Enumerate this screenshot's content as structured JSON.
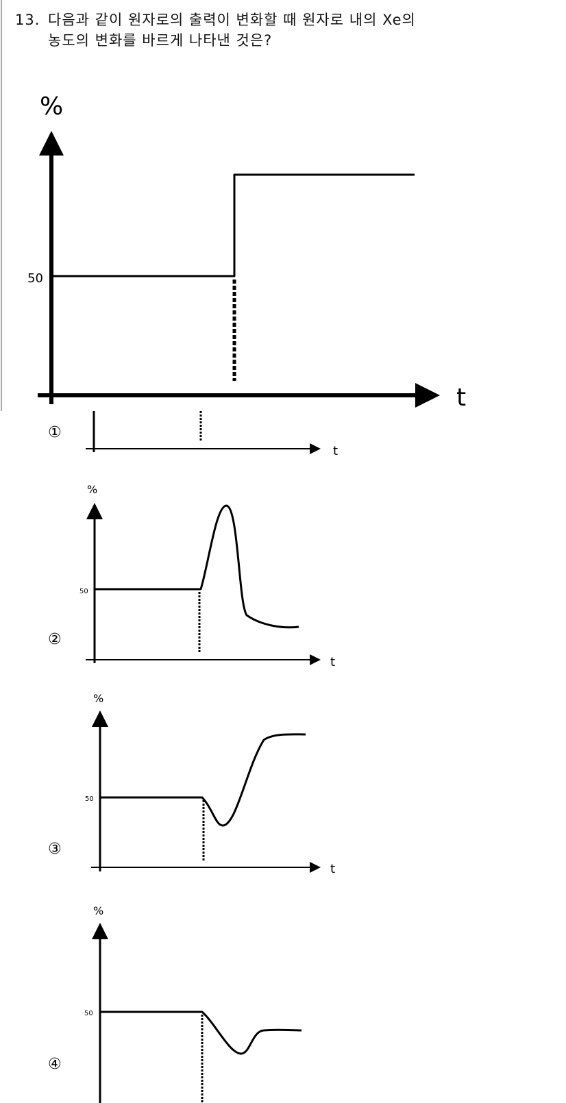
{
  "question": {
    "number": "13.",
    "line1": "다음과 같이 원자로의 출력이 변화할 때 원자로 내의 Xe의",
    "line2": "농도의 변화를 바르게 나타낸 것은?"
  },
  "main_graph": {
    "y_label": "%",
    "y_tick": "50",
    "x_label": "t"
  },
  "options": [
    {
      "marker": "①",
      "x_label": "t"
    },
    {
      "marker": "②",
      "y_label": "%",
      "y_tick": "50",
      "x_label": "t"
    },
    {
      "marker": "③",
      "y_label": "%",
      "y_tick": "50",
      "x_label": "t"
    },
    {
      "marker": "④",
      "y_label": "%",
      "y_tick": "50"
    }
  ]
}
